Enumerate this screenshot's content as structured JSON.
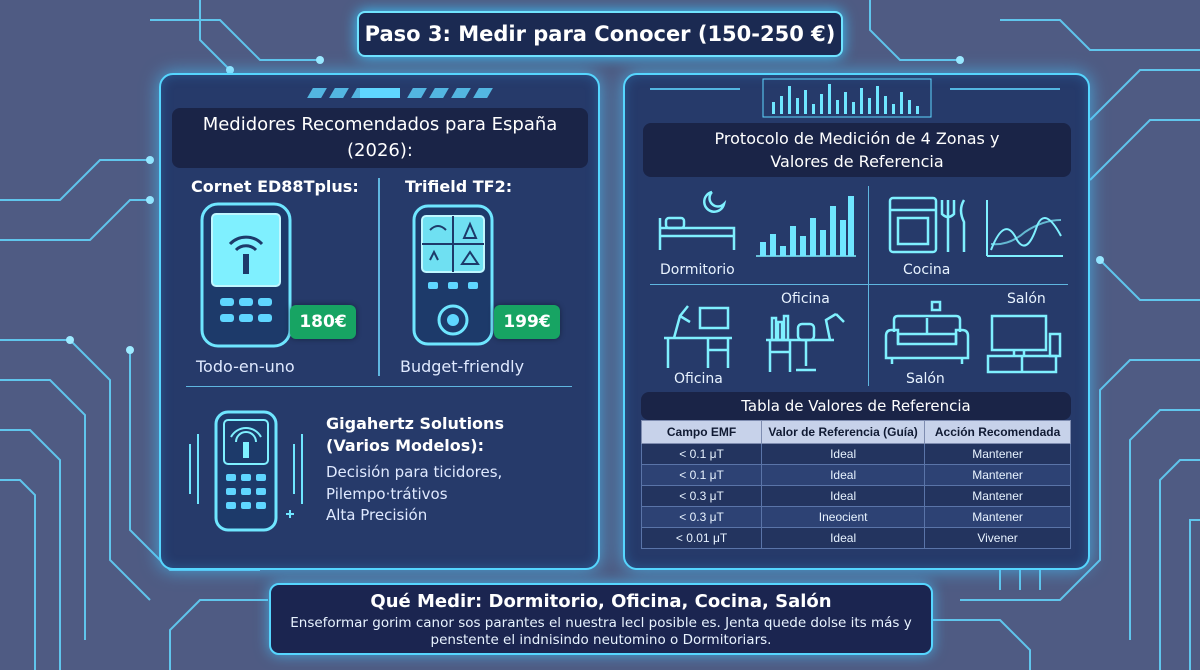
{
  "title": "Paso 3: Medir para Conocer (150-250 €)",
  "left_panel": {
    "heading_line1": "Medidores Recomendados para España",
    "heading_line2": "(2026):",
    "meters": [
      {
        "name": "Cornet ED88Tplus:",
        "price": "180€",
        "description": "Todo-en-uno"
      },
      {
        "name": "Trifield TF2:",
        "price": "199€",
        "description": "Budget-friendly"
      }
    ],
    "gigahertz": {
      "name_line1": "Gigahertz Solutions",
      "name_line2": "(Varios Modelos):",
      "lines": [
        "Decisión para ticidores,",
        "Pilempo·trátivos",
        "Alta Precisión"
      ]
    }
  },
  "right_panel": {
    "heading_line1": "Protocolo de Medición de 4 Zonas y",
    "heading_line2": "Valores de Referencia",
    "zones": {
      "dormitorio": "Dormitorio",
      "cocina": "Cocina",
      "oficina_top": "Oficina",
      "salon_top": "Salón",
      "oficina_bottom": "Oficina",
      "salon_bottom": "Salón"
    },
    "table_title": "Tabla de Valores de Referencia",
    "table": {
      "headers": [
        "Campo EMF",
        "Valor de Referencia (Guía)",
        "Acción Recomendada"
      ],
      "rows": [
        [
          "< 0.1 μT",
          "Ideal",
          "Mantener"
        ],
        [
          "< 0.1 μT",
          "Ideal",
          "Mantener"
        ],
        [
          "< 0.3 μT",
          "Ideal",
          "Mantener"
        ],
        [
          "< 0.3 μT",
          "Ineocient",
          "Mantener"
        ],
        [
          "< 0.01 μT",
          "Ideal",
          "Vivener"
        ]
      ]
    }
  },
  "bottom": {
    "title": "Qué Medir: Dormitorio, Oficina, Cocina, Salón",
    "line1": "Enseformar gorim canor sos parantes el nuestra lecl posible es. Jenta quede dolse its más y",
    "line2": "penstente el indnisindo neutomino o Dormitoriars."
  },
  "colors": {
    "background": "#4f5b83",
    "panel": "#263a6a",
    "glow": "#56d6ff",
    "price_badge": "#17a463"
  }
}
